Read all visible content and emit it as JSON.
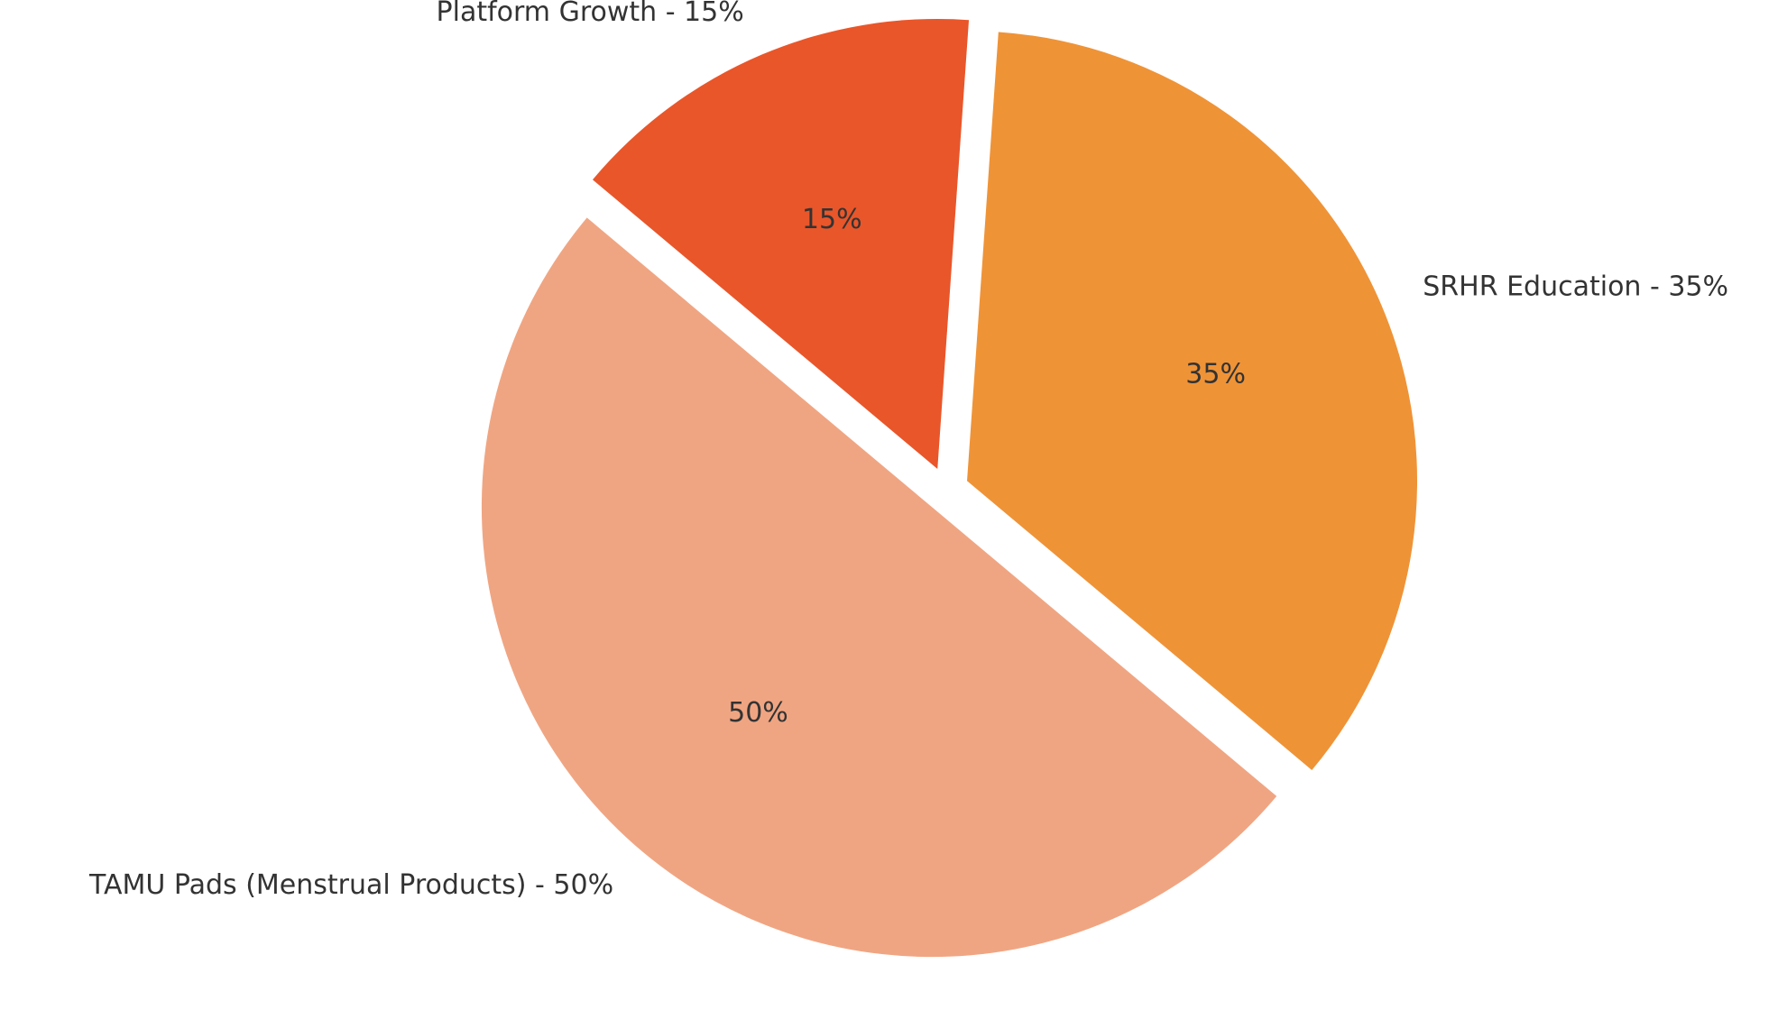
{
  "chart_data": {
    "type": "pie",
    "categories": [
      "TAMU Pads (Menstrual Products) - 50%",
      "SRHR Education - 35%",
      "Platform Growth - 15%"
    ],
    "values": [
      50,
      35,
      15
    ],
    "value_labels": [
      "50%",
      "35%",
      "15%"
    ],
    "colors": [
      "#f0a582",
      "#ef9337",
      "#e9562a"
    ]
  }
}
